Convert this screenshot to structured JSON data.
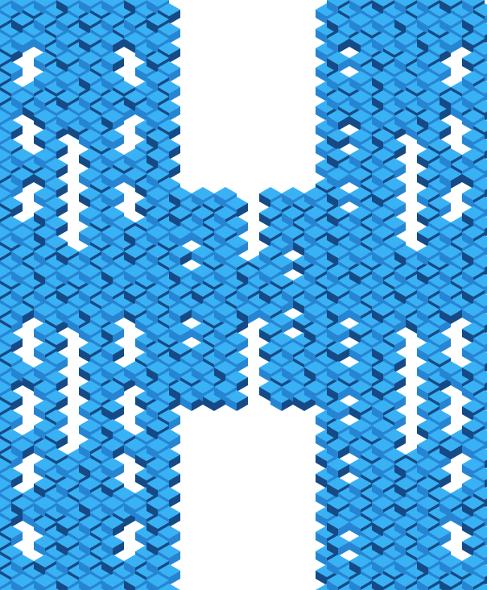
{
  "artwork": {
    "subject": "fractal-cube-lattice",
    "fill_colors": {
      "light_face": "#38b2f5",
      "mid_face": "#2685d3",
      "dark_face": "#154a86",
      "background": "#ffffff"
    }
  }
}
